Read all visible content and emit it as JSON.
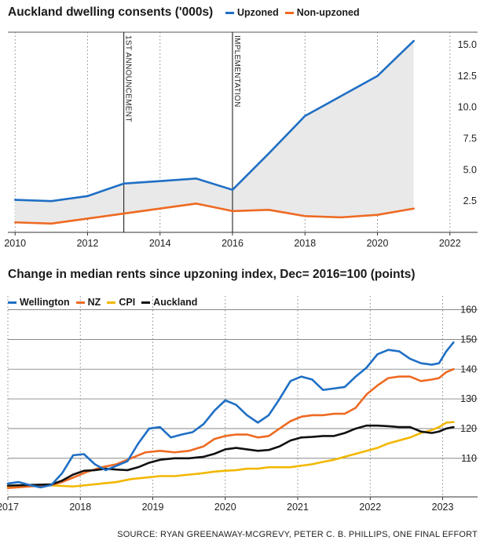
{
  "source": "SOURCE: RYAN GREENAWAY-MCGREVY, PETER C. B. PHILLIPS, ONE FINAL EFFORT",
  "chart_data": [
    {
      "type": "line",
      "title": "Auckland dwelling consents ('000s)",
      "xlim": [
        2009.8,
        2022.2
      ],
      "ylim": [
        0,
        16
      ],
      "xticks": [
        "2010",
        "2012",
        "2014",
        "2016",
        "2018",
        "2020",
        "2022"
      ],
      "yticks": [
        "2.5",
        "5.0",
        "7.5",
        "10.0",
        "12.5",
        "15.0"
      ],
      "grid": "dotted vertical",
      "legend_position": "top",
      "annotations": [
        {
          "label": "1ST ANNOUNCEMENT",
          "x": 2013
        },
        {
          "label": "IMPLEMENTATION",
          "x": 2016
        }
      ],
      "series": [
        {
          "name": "Upzoned",
          "color": "#1f6fc5",
          "x": [
            2010,
            2011,
            2012,
            2013,
            2014,
            2015,
            2016,
            2017,
            2018,
            2019,
            2020,
            2021
          ],
          "y": [
            2.6,
            2.5,
            2.9,
            3.9,
            4.1,
            4.3,
            3.4,
            6.3,
            9.3,
            10.9,
            12.5,
            15.3
          ]
        },
        {
          "name": "Non-upzoned",
          "color": "#ee6a22",
          "x": [
            2010,
            2011,
            2012,
            2013,
            2014,
            2015,
            2016,
            2017,
            2018,
            2019,
            2020,
            2021
          ],
          "y": [
            0.8,
            0.7,
            1.1,
            1.5,
            1.9,
            2.3,
            1.7,
            1.8,
            1.3,
            1.2,
            1.4,
            1.9
          ]
        }
      ]
    },
    {
      "type": "line",
      "title": "Change in median rents since upzoning index, Dec= 2016=100 (points)",
      "xlim": [
        2017.0,
        2023.2
      ],
      "ylim": [
        97,
        162
      ],
      "xticks": [
        "2017",
        "2018",
        "2019",
        "2020",
        "2021",
        "2022",
        "2023"
      ],
      "yticks": [
        "110",
        "120",
        "130",
        "140",
        "150",
        "160"
      ],
      "grid": "horizontal lines, dotted vertical",
      "legend_position": "top",
      "series": [
        {
          "name": "Wellington",
          "color": "#1f6fc5",
          "x": [
            2017.0,
            2017.15,
            2017.3,
            2017.45,
            2017.6,
            2017.75,
            2017.9,
            2018.05,
            2018.2,
            2018.35,
            2018.5,
            2018.65,
            2018.8,
            2018.95,
            2019.1,
            2019.25,
            2019.4,
            2019.55,
            2019.7,
            2019.85,
            2020.0,
            2020.15,
            2020.3,
            2020.45,
            2020.6,
            2020.75,
            2020.9,
            2021.05,
            2021.2,
            2021.35,
            2021.5,
            2021.65,
            2021.8,
            2021.95,
            2022.1,
            2022.25,
            2022.4,
            2022.55,
            2022.7,
            2022.85,
            2022.95,
            2023.05,
            2023.15
          ],
          "y": [
            101.5,
            102.0,
            101.0,
            100.2,
            101.0,
            105.0,
            111.0,
            111.4,
            108.0,
            106.0,
            107.5,
            109.0,
            115.0,
            120.0,
            120.5,
            117.0,
            118.0,
            118.8,
            121.5,
            126.0,
            129.5,
            128.0,
            124.5,
            122.0,
            124.5,
            130.0,
            136.0,
            137.5,
            136.5,
            133.0,
            133.5,
            134.0,
            137.5,
            140.5,
            145.0,
            146.5,
            146.0,
            143.5,
            142.0,
            141.5,
            142.0,
            146.0,
            149.0
          ]
        },
        {
          "name": "NZ",
          "color": "#ee6a22",
          "x": [
            2017.0,
            2017.3,
            2017.6,
            2017.75,
            2017.9,
            2018.1,
            2018.3,
            2018.5,
            2018.7,
            2018.9,
            2019.1,
            2019.3,
            2019.5,
            2019.7,
            2019.85,
            2020.0,
            2020.15,
            2020.3,
            2020.45,
            2020.6,
            2020.75,
            2020.9,
            2021.05,
            2021.2,
            2021.35,
            2021.5,
            2021.65,
            2021.8,
            2021.95,
            2022.1,
            2022.25,
            2022.4,
            2022.55,
            2022.7,
            2022.85,
            2022.95,
            2023.05,
            2023.15
          ],
          "y": [
            100.0,
            100.5,
            101.0,
            102.0,
            103.5,
            105.5,
            107.0,
            108.0,
            110.0,
            112.0,
            112.5,
            112.0,
            112.5,
            114.0,
            116.5,
            117.5,
            118.0,
            118.0,
            117.0,
            117.5,
            120.0,
            122.5,
            124.0,
            124.5,
            124.5,
            125.0,
            125.0,
            127.0,
            131.5,
            134.5,
            137.0,
            137.5,
            137.5,
            136.0,
            136.5,
            137.0,
            139.0,
            140.0
          ]
        },
        {
          "name": "CPI",
          "color": "#f2b700",
          "x": [
            2017.0,
            2017.25,
            2017.5,
            2017.75,
            2017.9,
            2018.1,
            2018.3,
            2018.5,
            2018.7,
            2018.9,
            2019.1,
            2019.3,
            2019.5,
            2019.7,
            2019.85,
            2020.0,
            2020.15,
            2020.3,
            2020.45,
            2020.6,
            2020.75,
            2020.9,
            2021.05,
            2021.2,
            2021.35,
            2021.5,
            2021.65,
            2021.8,
            2021.95,
            2022.1,
            2022.25,
            2022.4,
            2022.55,
            2022.7,
            2022.85,
            2022.95,
            2023.05,
            2023.15
          ],
          "y": [
            100.5,
            100.8,
            101.0,
            100.7,
            100.5,
            101.0,
            101.5,
            102.0,
            103.0,
            103.5,
            104.0,
            104.0,
            104.5,
            105.0,
            105.5,
            105.8,
            106.0,
            106.5,
            106.5,
            107.0,
            107.0,
            107.0,
            107.5,
            108.0,
            108.8,
            109.5,
            110.5,
            111.5,
            112.5,
            113.5,
            115.0,
            116.0,
            117.0,
            118.5,
            119.5,
            120.5,
            122.0,
            122.2
          ]
        },
        {
          "name": "Auckland",
          "color": "#111111",
          "x": [
            2017.0,
            2017.3,
            2017.6,
            2017.75,
            2017.9,
            2018.05,
            2018.2,
            2018.35,
            2018.5,
            2018.65,
            2018.8,
            2018.95,
            2019.1,
            2019.3,
            2019.5,
            2019.7,
            2019.85,
            2020.0,
            2020.15,
            2020.3,
            2020.45,
            2020.6,
            2020.75,
            2020.9,
            2021.05,
            2021.2,
            2021.35,
            2021.5,
            2021.65,
            2021.8,
            2021.95,
            2022.1,
            2022.25,
            2022.4,
            2022.55,
            2022.7,
            2022.85,
            2022.95,
            2023.05,
            2023.15
          ],
          "y": [
            100.8,
            101.0,
            101.2,
            102.5,
            104.5,
            105.8,
            106.0,
            106.5,
            106.2,
            106.0,
            107.0,
            108.5,
            109.5,
            110.0,
            110.0,
            110.5,
            111.5,
            113.0,
            113.5,
            113.0,
            112.5,
            112.8,
            114.0,
            116.0,
            117.0,
            117.2,
            117.5,
            117.5,
            118.5,
            120.0,
            121.0,
            121.0,
            120.8,
            120.5,
            120.5,
            119.0,
            118.5,
            119.0,
            120.0,
            120.5
          ]
        }
      ]
    }
  ]
}
